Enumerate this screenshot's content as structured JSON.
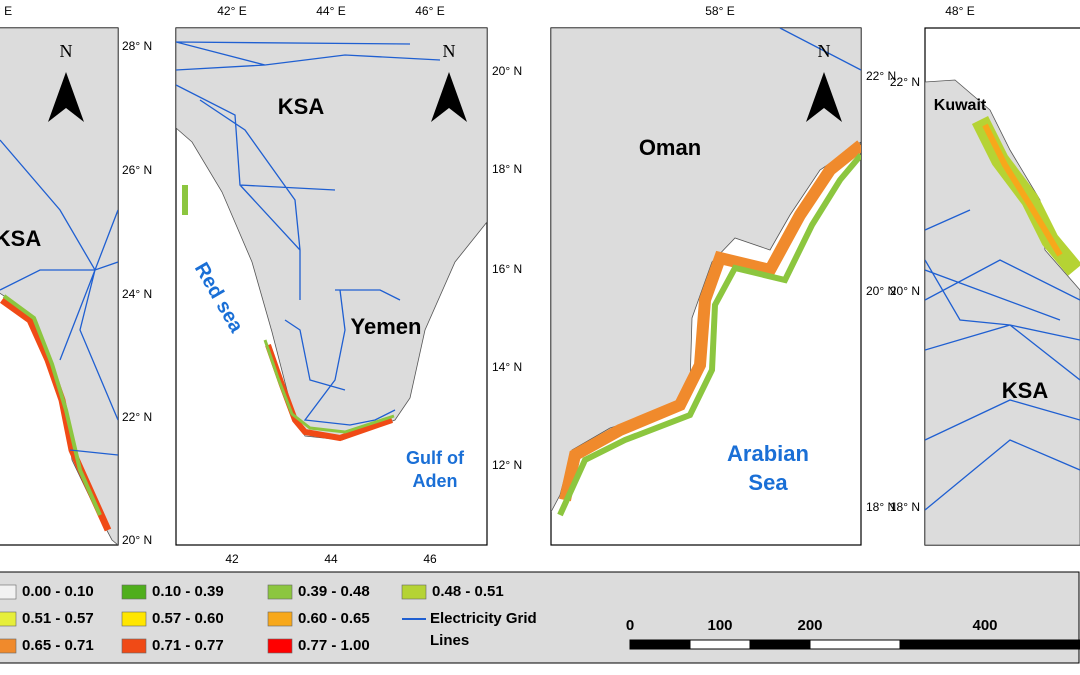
{
  "panels": [
    {
      "top_ticks": [
        "° E"
      ],
      "right_ticks": [
        "28° N",
        "26° N",
        "24° N",
        "22° N",
        "20° N"
      ],
      "north": "N",
      "places": [
        "KSA"
      ]
    },
    {
      "top_ticks": [
        "42° E",
        "44° E",
        "46° E"
      ],
      "bottom_ticks": [
        "42",
        "44",
        "46"
      ],
      "right_ticks": [
        "20° N",
        "18° N",
        "16° N",
        "14° N",
        "12° N"
      ],
      "north": "N",
      "places": [
        "KSA",
        "Yemen"
      ],
      "seas": [
        {
          "lines": [
            "Red sea"
          ]
        },
        {
          "lines": [
            "Gulf of",
            "Aden"
          ]
        }
      ]
    },
    {
      "top_ticks": [
        "58° E"
      ],
      "right_ticks": [
        "22° N",
        "20° N",
        "18° N"
      ],
      "north": "N",
      "places": [
        "Oman"
      ],
      "seas": [
        {
          "lines": [
            "Arabian",
            "Sea"
          ]
        }
      ]
    },
    {
      "top_ticks": [
        "48° E"
      ],
      "left_ticks": [
        "22° N",
        "20° N",
        "18° N"
      ],
      "places": [
        "Kuwait",
        "KSA"
      ]
    }
  ],
  "legend": {
    "items": [
      {
        "label": "0.00 - 0.10",
        "color": "#f2f2f2"
      },
      {
        "label": "0.10 - 0.39",
        "color": "#4fae1c"
      },
      {
        "label": "0.39 - 0.48",
        "color": "#8cc63f"
      },
      {
        "label": "0.48 - 0.51",
        "color": "#b5d334"
      },
      {
        "label": "0.51 - 0.57",
        "color": "#e6ee3a"
      },
      {
        "label": "0.57 - 0.60",
        "color": "#ffe600"
      },
      {
        "label": "0.60 - 0.65",
        "color": "#f7a81b"
      },
      {
        "label": "0.65 - 0.71",
        "color": "#f08a2c"
      },
      {
        "label": "0.71 - 0.77",
        "color": "#f04a16"
      },
      {
        "label": "0.77 - 1.00",
        "color": "#ff0000"
      }
    ],
    "grid_lines": {
      "lines": [
        "Electricity Grid",
        "Lines"
      ],
      "color": "#1f5fd1"
    }
  },
  "scale_bar": {
    "labels": [
      "0",
      "100",
      "200",
      "400"
    ]
  }
}
